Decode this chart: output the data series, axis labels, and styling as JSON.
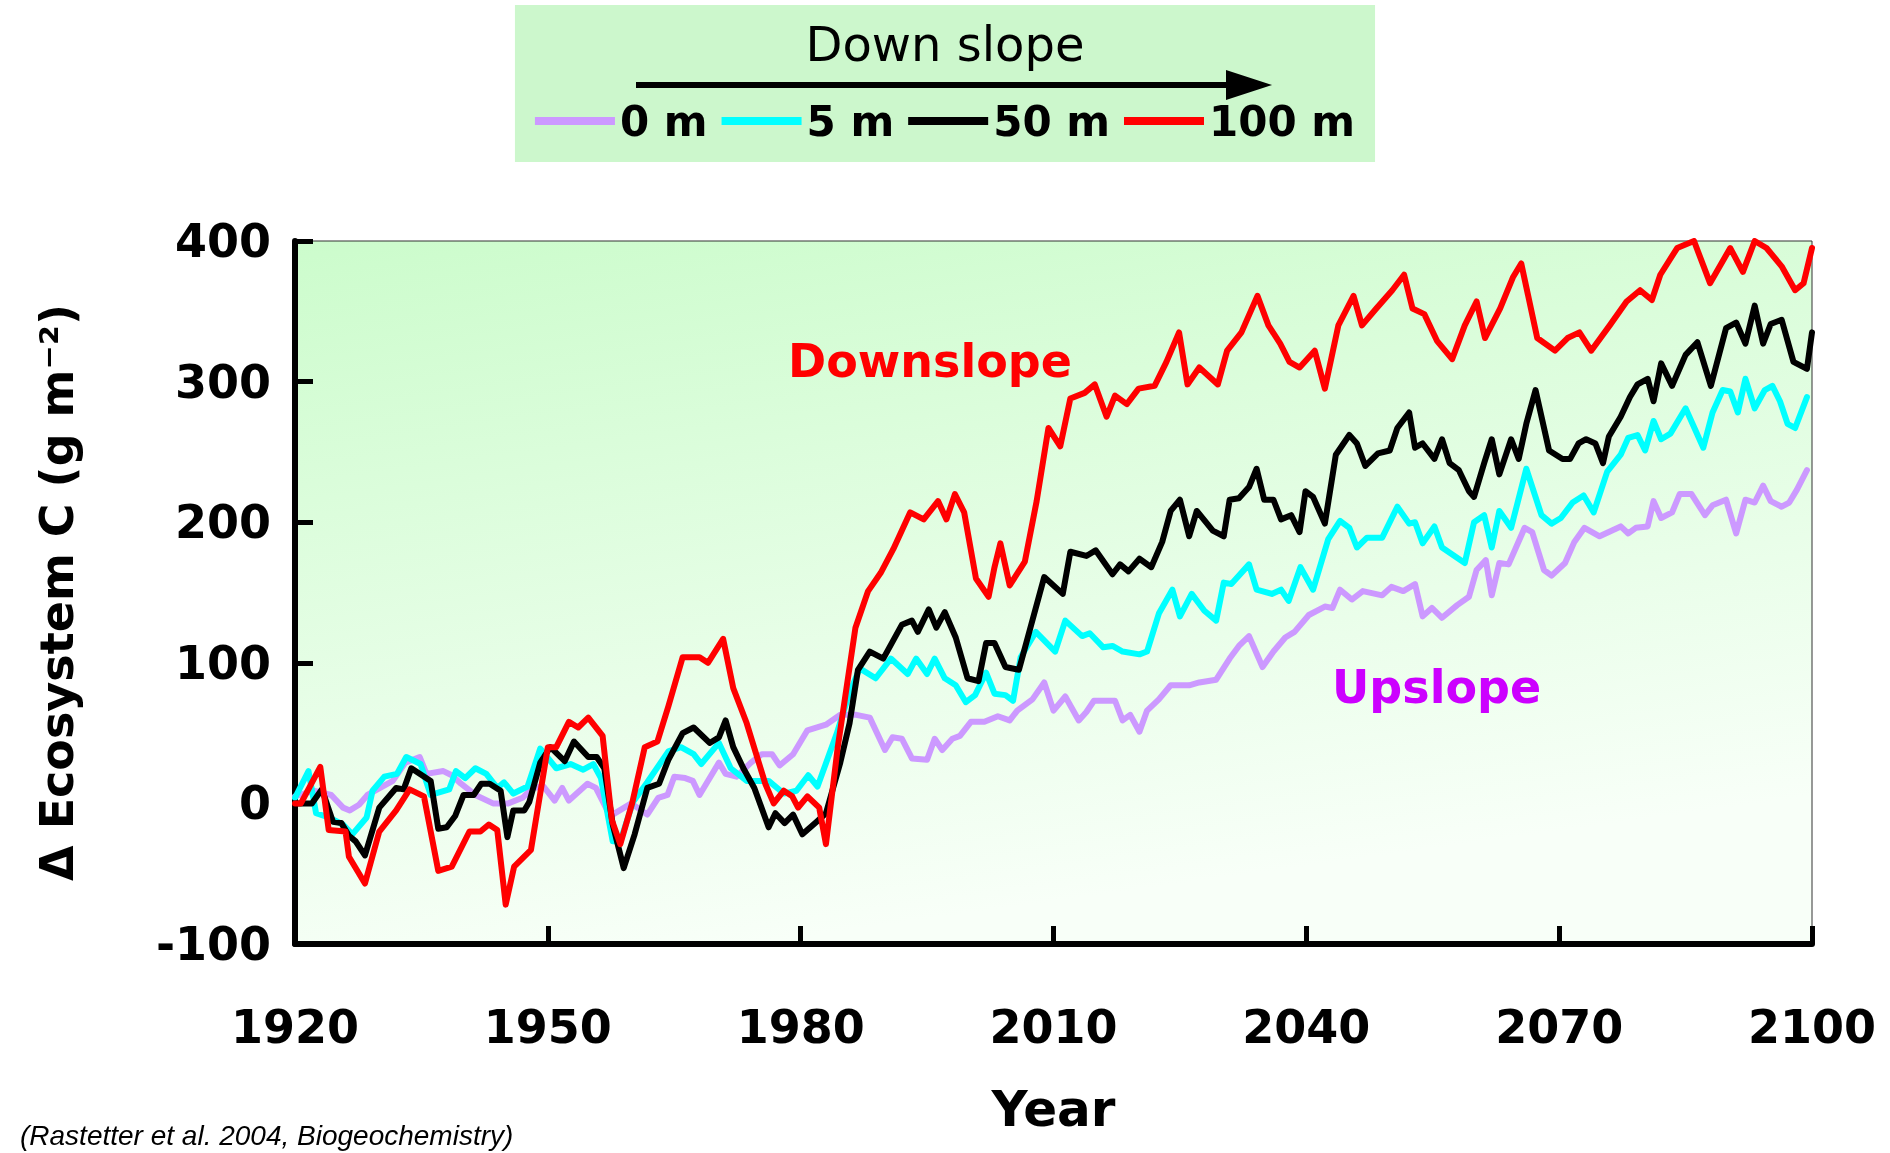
{
  "chart_data": {
    "type": "line",
    "xlabel": "Year",
    "ylabel": "Δ Ecosystem C (g m⁻²)",
    "legend_title": "Down slope",
    "xlim": [
      1920,
      2100
    ],
    "xticks": [
      1920,
      1950,
      1980,
      2010,
      2040,
      2070,
      2100
    ],
    "ylim": [
      -100,
      400
    ],
    "yticks": [
      -100,
      0,
      100,
      200,
      300,
      400
    ],
    "grid": false,
    "legend": "top",
    "marker": "none",
    "line_style": "solid",
    "annotations": [
      "Downslope",
      "Upslope",
      "(Rastetter et al. 2004, Biogeochemistry)"
    ],
    "series": [
      {
        "name": "0 m",
        "color": "#cc99ff",
        "x": [
          1920,
          1922.2,
          1924.3,
          1925.7,
          1926.5,
          1927.6,
          1928.6,
          1930.1,
          1931.6,
          1933.1,
          1934.8,
          1935.6,
          1937.6,
          1938.6,
          1939.7,
          1941.4,
          1943.5,
          1945.3,
          1947,
          1948.2,
          1949.5,
          1950.8,
          1951.7,
          1952.5,
          1954.7,
          1955.7,
          1957.4,
          1959.9,
          1961.8,
          1963.1,
          1964.2,
          1965,
          1966.3,
          1967.2,
          1968,
          1970.3,
          1971.1,
          1972.4,
          1974.1,
          1975.4,
          1976.6,
          1977.5,
          1979.1,
          1980.8,
          1983,
          1984.7,
          1986.6,
          1988.2,
          1990,
          1990.9,
          1992,
          1993.2,
          1995,
          1995.9,
          1996.8,
          1998,
          1998.9,
          2000.2,
          2001.8,
          2003.4,
          2004.8,
          2005.7,
          2007.5,
          2008.9,
          2010,
          2011.4,
          2013,
          2013.9,
          2014.8,
          2017.3,
          2018.2,
          2019.1,
          2020.2,
          2021.1,
          2022.5,
          2023.9,
          2026.1,
          2027.3,
          2029.3,
          2030.9,
          2032,
          2033.2,
          2034.8,
          2036.1,
          2037.5,
          2038.6,
          2040.3,
          2042.2,
          2043.1,
          2044,
          2045.4,
          2046.7,
          2049,
          2050.1,
          2051.5,
          2052.9,
          2053.8,
          2054.9,
          2056.1,
          2057.9,
          2059.3,
          2060.2,
          2061.3,
          2062,
          2062.9,
          2064,
          2065.9,
          2066.8,
          2068.2,
          2069.1,
          2070.7,
          2071.8,
          2073,
          2074.8,
          2077.3,
          2078.2,
          2079.1,
          2080.5,
          2081.2,
          2082.1,
          2083.4,
          2084.3,
          2085.7,
          2087.3,
          2088.2,
          2089.8,
          2091,
          2092.1,
          2093.2,
          2094.2,
          2095.1,
          2096.4,
          2097.3,
          2098.2,
          2099.4
        ],
        "values": [
          5,
          9,
          6,
          -3,
          -5,
          -1,
          6,
          11,
          16,
          29,
          33,
          21,
          23,
          20,
          14,
          6,
          0,
          0,
          4,
          11,
          12,
          2,
          11,
          2,
          14,
          11,
          -9,
          0,
          -8,
          4,
          6,
          19,
          18,
          16,
          6,
          29,
          21,
          19,
          29,
          35,
          35,
          27,
          35,
          52,
          56,
          63,
          63,
          61,
          38,
          47,
          46,
          32,
          31,
          46,
          38,
          46,
          48,
          58,
          58,
          62,
          59,
          66,
          74,
          86,
          66,
          76,
          59,
          65,
          73,
          73,
          59,
          63,
          51,
          66,
          74,
          84,
          84,
          86,
          88,
          103,
          112,
          119,
          97,
          108,
          118,
          122,
          134,
          140,
          139,
          152,
          145,
          151,
          148,
          154,
          151,
          156,
          133,
          139,
          132,
          141,
          147,
          166,
          173,
          148,
          171,
          170,
          196,
          193,
          166,
          162,
          171,
          186,
          196,
          190,
          197,
          192,
          196,
          197,
          215,
          203,
          207,
          220,
          220,
          205,
          212,
          216,
          192,
          216,
          214,
          226,
          215,
          211,
          214,
          223,
          237
        ]
      },
      {
        "name": "5 m",
        "color": "#00ffff",
        "x": [
          1920,
          1921.6,
          1922.5,
          1924,
          1925.7,
          1926.8,
          1928.5,
          1929.2,
          1930.6,
          1932.1,
          1933.2,
          1934.9,
          1936.1,
          1938.3,
          1939.1,
          1940.2,
          1941.4,
          1942.7,
          1944,
          1944.8,
          1945.9,
          1947.6,
          1949.1,
          1951,
          1952.7,
          1954.2,
          1955.4,
          1956.3,
          1957.7,
          1958.6,
          1960.1,
          1961.8,
          1964.3,
          1965.8,
          1967.3,
          1968.2,
          1970.3,
          1971.7,
          1973.6,
          1976.2,
          1978,
          1979.5,
          1980.9,
          1982,
          1984.3,
          1985.7,
          1987,
          1988.9,
          1990.7,
          1992.7,
          1993.7,
          1995,
          1995.9,
          1997.1,
          1998.4,
          1999.6,
          2000.7,
          2002,
          2003,
          2004.3,
          2005.2,
          2006.1,
          2007.9,
          2010.2,
          2011.4,
          2013.4,
          2014.3,
          2015.9,
          2017,
          2018.2,
          2020.2,
          2021.1,
          2022.5,
          2024.1,
          2025,
          2026.4,
          2027.9,
          2029.3,
          2030.2,
          2031.1,
          2033.2,
          2034.1,
          2035.9,
          2037,
          2037.9,
          2039.3,
          2040.8,
          2042.6,
          2044,
          2045.1,
          2046,
          2047.2,
          2049,
          2050.8,
          2052.2,
          2052.9,
          2053.8,
          2055.2,
          2056.1,
          2058.8,
          2059.9,
          2061.1,
          2062,
          2062.9,
          2064.3,
          2066.1,
          2067.9,
          2069.1,
          2070.2,
          2071.6,
          2072.9,
          2074.1,
          2075.7,
          2077.3,
          2078.2,
          2079.3,
          2080.2,
          2081.2,
          2082.1,
          2083.2,
          2085,
          2087.1,
          2088.2,
          2089.4,
          2090.3,
          2091.2,
          2092.1,
          2093.2,
          2094.4,
          2095.3,
          2096.2,
          2097.1,
          2098,
          2099.4
        ],
        "values": [
          4,
          23,
          -7,
          -10,
          -15,
          -22,
          -10,
          9,
          19,
          21,
          33,
          28,
          6,
          10,
          23,
          18,
          25,
          21,
          11,
          15,
          7,
          12,
          39,
          25,
          28,
          24,
          28,
          18,
          -27,
          -27,
          1,
          15,
          37,
          40,
          35,
          28,
          43,
          25,
          16,
          16,
          7,
          9,
          20,
          12,
          50,
          77,
          96,
          89,
          103,
          92,
          103,
          92,
          103,
          89,
          84,
          72,
          77,
          93,
          78,
          77,
          73,
          104,
          122,
          108,
          130,
          119,
          121,
          111,
          112,
          108,
          106,
          108,
          135,
          152,
          133,
          149,
          137,
          130,
          157,
          156,
          170,
          152,
          149,
          152,
          144,
          168,
          152,
          188,
          201,
          196,
          182,
          189,
          189,
          211,
          199,
          200,
          185,
          197,
          182,
          171,
          200,
          205,
          182,
          208,
          196,
          238,
          205,
          199,
          203,
          214,
          219,
          207,
          236,
          248,
          260,
          262,
          251,
          272,
          259,
          263,
          281,
          253,
          278,
          294,
          293,
          278,
          302,
          281,
          294,
          297,
          286,
          270,
          267,
          289
        ]
      },
      {
        "name": "50 m",
        "color": "#000000",
        "x": [
          1920,
          1922,
          1923.2,
          1924.5,
          1925.5,
          1926.4,
          1927.2,
          1928.3,
          1930,
          1932,
          1932.9,
          1933.8,
          1936.1,
          1937,
          1938,
          1939,
          1940,
          1941.2,
          1942.1,
          1943.1,
          1944.4,
          1945.2,
          1945.9,
          1947.2,
          1947.8,
          1949.1,
          1950.3,
          1952,
          1953.1,
          1954.8,
          1955.8,
          1956.7,
          1957.7,
          1959,
          1960.3,
          1961.8,
          1963.2,
          1964.3,
          1966,
          1967.3,
          1969.2,
          1970.3,
          1971.1,
          1972,
          1973.2,
          1974.5,
          1976.2,
          1977,
          1978.1,
          1979.1,
          1980.2,
          1981.9,
          1983,
          1984.7,
          1985.8,
          1986.8,
          1988.2,
          1989.8,
          1992,
          1993.2,
          1993.9,
          1995.2,
          1996.1,
          1997.1,
          1998.4,
          1999.8,
          2001.1,
          2002,
          2003,
          2004.3,
          2005.9,
          2008.9,
          2011.1,
          2012,
          2013.9,
          2015,
          2017,
          2017.9,
          2018.9,
          2020.2,
          2021.6,
          2022.9,
          2023.9,
          2025,
          2026.1,
          2027,
          2028.9,
          2030.2,
          2030.9,
          2032,
          2033.2,
          2034.1,
          2035,
          2036.1,
          2037,
          2038.2,
          2039.2,
          2039.9,
          2040.8,
          2042.2,
          2043.5,
          2045.1,
          2046,
          2047,
          2048.5,
          2049.9,
          2050.8,
          2052.2,
          2052.9,
          2053.8,
          2055.2,
          2056.1,
          2057,
          2058.1,
          2059.3,
          2059.9,
          2061.1,
          2062,
          2062.9,
          2064.3,
          2065.2,
          2066.1,
          2067.2,
          2068.8,
          2070.4,
          2071.3,
          2072.3,
          2073.2,
          2074.3,
          2075.2,
          2075.9,
          2077.3,
          2078.4,
          2079.3,
          2080.5,
          2081.2,
          2082.1,
          2083.4,
          2085,
          2086.4,
          2088,
          2089.8,
          2091,
          2092.1,
          2093.2,
          2094.2,
          2095.1,
          2096.4,
          2097.8,
          2099.4,
          2100
        ],
        "values": [
          0,
          0,
          10,
          -13,
          -14,
          -23,
          -27,
          -37,
          -3,
          11,
          10,
          25,
          16,
          -18,
          -17,
          -9,
          6,
          6,
          14,
          14,
          9,
          -24,
          -5,
          -5,
          1,
          29,
          40,
          30,
          44,
          33,
          33,
          25,
          -15,
          -46,
          -22,
          11,
          14,
          31,
          50,
          54,
          43,
          47,
          59,
          40,
          25,
          11,
          -17,
          -7,
          -14,
          -8,
          -22,
          -13,
          -7,
          29,
          57,
          95,
          108,
          103,
          127,
          130,
          122,
          138,
          125,
          136,
          118,
          89,
          87,
          114,
          114,
          97,
          95,
          161,
          149,
          179,
          176,
          180,
          163,
          170,
          165,
          174,
          168,
          186,
          208,
          216,
          190,
          208,
          194,
          190,
          216,
          217,
          225,
          238,
          216,
          216,
          202,
          205,
          193,
          222,
          218,
          199,
          248,
          262,
          256,
          240,
          249,
          251,
          267,
          278,
          253,
          256,
          245,
          259,
          242,
          237,
          222,
          218,
          242,
          259,
          234,
          259,
          245,
          270,
          294,
          251,
          245,
          245,
          256,
          259,
          256,
          242,
          261,
          275,
          289,
          298,
          302,
          286,
          313,
          297,
          319,
          328,
          297,
          338,
          342,
          327,
          354,
          327,
          341,
          344,
          314,
          309,
          335
        ]
      },
      {
        "name": "100 m",
        "color": "#ff0000",
        "x": [
          1920,
          1920.7,
          1923,
          1924,
          1926,
          1926.4,
          1928.3,
          1930,
          1932,
          1933.6,
          1935.3,
          1937,
          1938.6,
          1940.7,
          1942,
          1943,
          1944,
          1945,
          1946,
          1948,
          1950,
          1951,
          1952.5,
          1953.6,
          1954.8,
          1956.5,
          1957.6,
          1958.6,
          1960,
          1961.5,
          1963,
          1964.3,
          1966,
          1968,
          1969,
          1970.8,
          1972,
          1973.6,
          1975.8,
          1976.8,
          1978,
          1979,
          1979.7,
          1980.8,
          1982.2,
          1983,
          1984.4,
          1986.5,
          1988,
          1989.5,
          1991,
          1993,
          1994.6,
          1996.3,
          1997.3,
          1998.3,
          1999.4,
          2000.8,
          2002.3,
          2003,
          2003.7,
          2004.8,
          2006.6,
          2008,
          2009.4,
          2010.8,
          2012,
          2013.7,
          2014.9,
          2016.3,
          2017.3,
          2018.7,
          2020.1,
          2022,
          2023.4,
          2024.9,
          2025.9,
          2027.3,
          2029.5,
          2030.6,
          2032.3,
          2034.2,
          2035.5,
          2036.9,
          2038,
          2039.2,
          2041,
          2042.2,
          2043.8,
          2045.6,
          2046.6,
          2048.3,
          2050.2,
          2051.6,
          2052.6,
          2054,
          2055.5,
          2057.3,
          2058.8,
          2060.2,
          2061.2,
          2063,
          2064.5,
          2065.5,
          2067.4,
          2069.5,
          2071,
          2072.4,
          2073.8,
          2076,
          2078,
          2079.6,
          2081,
          2082,
          2084,
          2086,
          2087.9,
          2090.3,
          2091.8,
          2093.2,
          2094.6,
          2096.4,
          2098,
          2099,
          2100
        ],
        "values": [
          0,
          0,
          26,
          -19,
          -20,
          -38,
          -57,
          -20,
          -5,
          10,
          5,
          -48,
          -45,
          -20,
          -20,
          -15,
          -19,
          -72,
          -45,
          -33,
          40,
          40,
          58,
          54,
          61,
          48,
          -12,
          -29,
          0,
          40,
          44,
          69,
          104,
          104,
          100,
          117,
          82,
          57,
          14,
          0,
          9,
          5,
          -3,
          5,
          -3,
          -29,
          40,
          125,
          151,
          164,
          181,
          207,
          202,
          215,
          202,
          220,
          207,
          160,
          147,
          168,
          185,
          155,
          172,
          215,
          267,
          254,
          288,
          292,
          298,
          275,
          290,
          284,
          295,
          297,
          314,
          335,
          298,
          310,
          298,
          322,
          335,
          361,
          340,
          327,
          314,
          310,
          322,
          295,
          340,
          361,
          340,
          352,
          365,
          376,
          352,
          348,
          329,
          316,
          340,
          357,
          331,
          352,
          374,
          384,
          331,
          322,
          331,
          335,
          322,
          340,
          357,
          365,
          358,
          376,
          395,
          400,
          370,
          395,
          378,
          400,
          395,
          382,
          365,
          370,
          395
        ]
      }
    ]
  }
}
